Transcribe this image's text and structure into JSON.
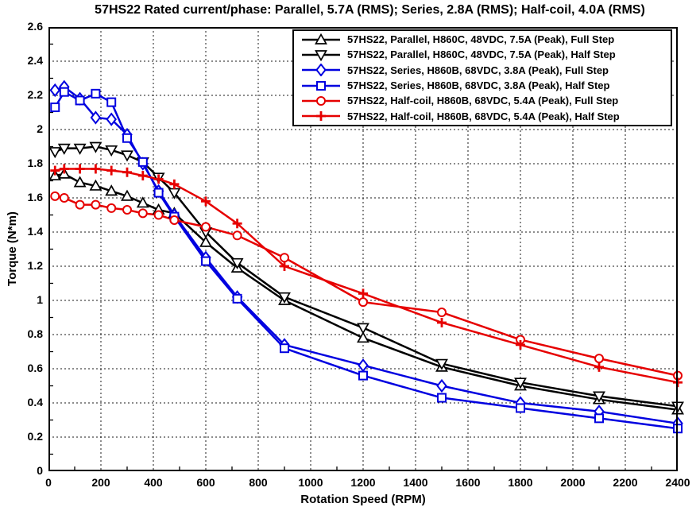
{
  "chart_data": {
    "type": "line",
    "title": "57HS22 Rated current/phase: Parallel, 5.7A (RMS); Series, 2.8A (RMS); Half-coil, 4.0A (RMS)",
    "xlabel": "Rotation Speed (RPM)",
    "ylabel": "Torque (N*m)",
    "xlim": [
      0,
      2400
    ],
    "ylim": [
      0,
      2.6
    ],
    "grid": true,
    "grid_style": "dashed",
    "legend_position": "top-right-inside",
    "xticks": [
      "0",
      "200",
      "400",
      "600",
      "800",
      "1000",
      "1200",
      "1400",
      "1600",
      "1800",
      "2000",
      "2200",
      "2400"
    ],
    "yticks": [
      "0",
      "0.2",
      "0.4",
      "0.6",
      "0.8",
      "1",
      "1.2",
      "1.4",
      "1.6",
      "1.8",
      "2",
      "2.2",
      "2.4",
      "2.6"
    ],
    "x": [
      25,
      60,
      120,
      180,
      240,
      300,
      360,
      420,
      480,
      600,
      720,
      900,
      1200,
      1500,
      1800,
      2100,
      2400
    ],
    "series": [
      {
        "label": "57HS22, Parallel, H860C, 48VDC, 7.5A (Peak), Full Step",
        "color": "#000000",
        "marker": "triangle-up",
        "values": [
          1.73,
          1.74,
          1.69,
          1.67,
          1.64,
          1.61,
          1.57,
          1.53,
          1.51,
          1.34,
          1.19,
          1.0,
          0.78,
          0.61,
          0.5,
          0.42,
          0.36
        ]
      },
      {
        "label": "57HS22, Parallel, H860C, 48VDC, 7.5A (Peak), Half Step",
        "color": "#000000",
        "marker": "triangle-down",
        "values": [
          1.87,
          1.89,
          1.89,
          1.9,
          1.88,
          1.85,
          1.81,
          1.72,
          1.63,
          1.4,
          1.22,
          1.02,
          0.84,
          0.63,
          0.52,
          0.44,
          0.38
        ]
      },
      {
        "label": "57HS22, Series, H860B, 68VDC, 3.8A (Peak), Full Step",
        "color": "#0000e0",
        "marker": "diamond",
        "values": [
          2.23,
          2.25,
          2.18,
          2.07,
          2.06,
          1.97,
          1.8,
          1.64,
          1.5,
          1.25,
          1.02,
          0.74,
          0.62,
          0.5,
          0.4,
          0.35,
          0.28
        ]
      },
      {
        "label": "57HS22, Series, H860B, 68VDC, 3.8A (Peak), Half Step",
        "color": "#0000e0",
        "marker": "square",
        "values": [
          2.13,
          2.22,
          2.17,
          2.21,
          2.16,
          1.95,
          1.81,
          1.63,
          1.49,
          1.23,
          1.01,
          0.72,
          0.56,
          0.43,
          0.37,
          0.31,
          0.25
        ]
      },
      {
        "label": "57HS22, Half-coil, H860B, 68VDC, 5.4A (Peak), Full Step",
        "color": "#e60000",
        "marker": "circle",
        "values": [
          1.61,
          1.6,
          1.56,
          1.56,
          1.54,
          1.53,
          1.51,
          1.5,
          1.47,
          1.43,
          1.38,
          1.25,
          0.99,
          0.93,
          0.77,
          0.66,
          0.56
        ]
      },
      {
        "label": "57HS22, Half-coil, H860B, 68VDC, 5.4A (Peak), Half Step",
        "color": "#e60000",
        "marker": "plus",
        "values": [
          1.76,
          1.77,
          1.77,
          1.77,
          1.76,
          1.75,
          1.73,
          1.71,
          1.68,
          1.58,
          1.45,
          1.2,
          1.04,
          0.87,
          0.74,
          0.61,
          0.52
        ]
      }
    ]
  }
}
